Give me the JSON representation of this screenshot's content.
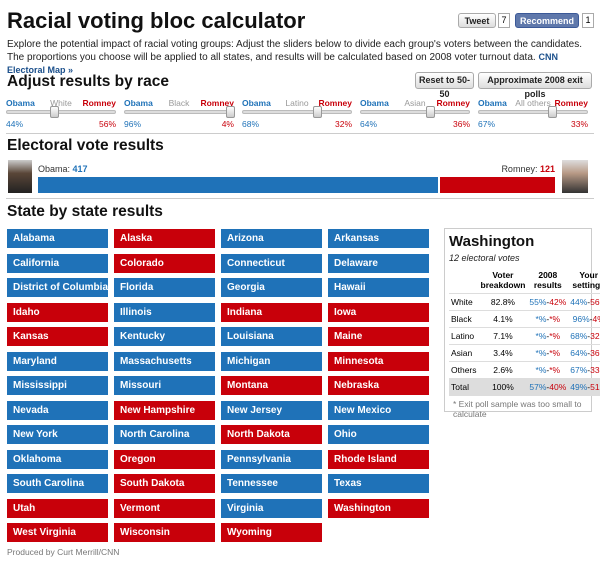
{
  "header": {
    "title": "Racial voting bloc calculator",
    "tweet": "Tweet",
    "tweet_count": "7",
    "recommend": "Recommend",
    "recommend_count": "1",
    "intro": "Explore the potential impact of racial voting groups: Adjust the sliders below to divide each group's voters between the candidates. The proportions you choose will be applied to all states, and results will be calculated based on 2008 voter turnout data.",
    "intro_link": "CNN Electoral Map »"
  },
  "adjust": {
    "title": "Adjust results by race",
    "reset_button": "Reset to 50-50",
    "exit_poll_button": "Approximate 2008 exit polls",
    "obama_label": "Obama",
    "romney_label": "Romney",
    "sliders": [
      {
        "group": "White",
        "obama": {
          "value": 44,
          "label": "44%"
        },
        "romney": {
          "value": 56,
          "label": "56%"
        }
      },
      {
        "group": "Black",
        "obama": {
          "value": 96,
          "label": "96%"
        },
        "romney": {
          "value": 4,
          "label": "4%"
        }
      },
      {
        "group": "Latino",
        "obama": {
          "value": 68,
          "label": "68%"
        },
        "romney": {
          "value": 32,
          "label": "32%"
        }
      },
      {
        "group": "Asian",
        "obama": {
          "value": 64,
          "label": "64%"
        },
        "romney": {
          "value": 36,
          "label": "36%"
        }
      },
      {
        "group": "All others",
        "obama": {
          "value": 67,
          "label": "67%"
        },
        "romney": {
          "value": 33,
          "label": "33%"
        }
      }
    ]
  },
  "electoral": {
    "title": "Electoral vote results",
    "obama_label": "Obama:",
    "obama_votes": 417,
    "romney_label": "Romney:",
    "romney_votes": 121,
    "obama_color": "#1f72b8",
    "romney_color": "#c8000a"
  },
  "states": {
    "title": "State by state results",
    "list": [
      {
        "name": "Alabama",
        "color": "#1f72b8"
      },
      {
        "name": "Alaska",
        "color": "#c8000a"
      },
      {
        "name": "Arizona",
        "color": "#1f72b8"
      },
      {
        "name": "Arkansas",
        "color": "#1f72b8"
      },
      {
        "name": "California",
        "color": "#1f72b8"
      },
      {
        "name": "Colorado",
        "color": "#c8000a"
      },
      {
        "name": "Connecticut",
        "color": "#1f72b8"
      },
      {
        "name": "Delaware",
        "color": "#1f72b8"
      },
      {
        "name": "District of Columbia",
        "color": "#1f72b8"
      },
      {
        "name": "Florida",
        "color": "#1f72b8"
      },
      {
        "name": "Georgia",
        "color": "#1f72b8"
      },
      {
        "name": "Hawaii",
        "color": "#1f72b8"
      },
      {
        "name": "Idaho",
        "color": "#c8000a"
      },
      {
        "name": "Illinois",
        "color": "#1f72b8"
      },
      {
        "name": "Indiana",
        "color": "#c8000a"
      },
      {
        "name": "Iowa",
        "color": "#c8000a"
      },
      {
        "name": "Kansas",
        "color": "#c8000a"
      },
      {
        "name": "Kentucky",
        "color": "#1f72b8"
      },
      {
        "name": "Louisiana",
        "color": "#1f72b8"
      },
      {
        "name": "Maine",
        "color": "#c8000a"
      },
      {
        "name": "Maryland",
        "color": "#1f72b8"
      },
      {
        "name": "Massachusetts",
        "color": "#1f72b8"
      },
      {
        "name": "Michigan",
        "color": "#1f72b8"
      },
      {
        "name": "Minnesota",
        "color": "#c8000a"
      },
      {
        "name": "Mississippi",
        "color": "#1f72b8"
      },
      {
        "name": "Missouri",
        "color": "#1f72b8"
      },
      {
        "name": "Montana",
        "color": "#c8000a"
      },
      {
        "name": "Nebraska",
        "color": "#c8000a"
      },
      {
        "name": "Nevada",
        "color": "#1f72b8"
      },
      {
        "name": "New Hampshire",
        "color": "#c8000a"
      },
      {
        "name": "New Jersey",
        "color": "#1f72b8"
      },
      {
        "name": "New Mexico",
        "color": "#1f72b8"
      },
      {
        "name": "New York",
        "color": "#1f72b8"
      },
      {
        "name": "North Carolina",
        "color": "#1f72b8"
      },
      {
        "name": "North Dakota",
        "color": "#c8000a"
      },
      {
        "name": "Ohio",
        "color": "#1f72b8"
      },
      {
        "name": "Oklahoma",
        "color": "#1f72b8"
      },
      {
        "name": "Oregon",
        "color": "#c8000a"
      },
      {
        "name": "Pennsylvania",
        "color": "#1f72b8"
      },
      {
        "name": "Rhode Island",
        "color": "#c8000a"
      },
      {
        "name": "South Carolina",
        "color": "#1f72b8"
      },
      {
        "name": "South Dakota",
        "color": "#c8000a"
      },
      {
        "name": "Tennessee",
        "color": "#1f72b8"
      },
      {
        "name": "Texas",
        "color": "#1f72b8"
      },
      {
        "name": "Utah",
        "color": "#c8000a"
      },
      {
        "name": "Vermont",
        "color": "#c8000a"
      },
      {
        "name": "Virginia",
        "color": "#1f72b8"
      },
      {
        "name": "Washington",
        "color": "#c8000a"
      },
      {
        "name": "West Virginia",
        "color": "#c8000a"
      },
      {
        "name": "Wisconsin",
        "color": "#c8000a"
      },
      {
        "name": "Wyoming",
        "color": "#c8000a"
      }
    ]
  },
  "detail": {
    "state": "Washington",
    "subtitle": "12 electoral votes",
    "headers": [
      "Voter breakdown",
      "2008 results",
      "Your settings"
    ],
    "rows": [
      {
        "group": "White",
        "breakdown": "82.8%",
        "results_2008": "55%-42%",
        "your_settings": "44%-56%"
      },
      {
        "group": "Black",
        "breakdown": "4.1%",
        "results_2008": "*%-*%",
        "your_settings": "96%-4%"
      },
      {
        "group": "Latino",
        "breakdown": "7.1%",
        "results_2008": "*%-*%",
        "your_settings": "68%-32%"
      },
      {
        "group": "Asian",
        "breakdown": "3.4%",
        "results_2008": "*%-*%",
        "your_settings": "64%-36%"
      },
      {
        "group": "Others",
        "breakdown": "2.6%",
        "results_2008": "*%-*%",
        "your_settings": "67%-33%"
      },
      {
        "group": "Total",
        "breakdown": "100%",
        "results_2008": "57%-40%",
        "your_settings": "49%-51%"
      }
    ],
    "footnote": "* Exit poll sample was too small to calculate"
  },
  "footer": {
    "credit": "Produced by Curt Merrill/CNN"
  }
}
